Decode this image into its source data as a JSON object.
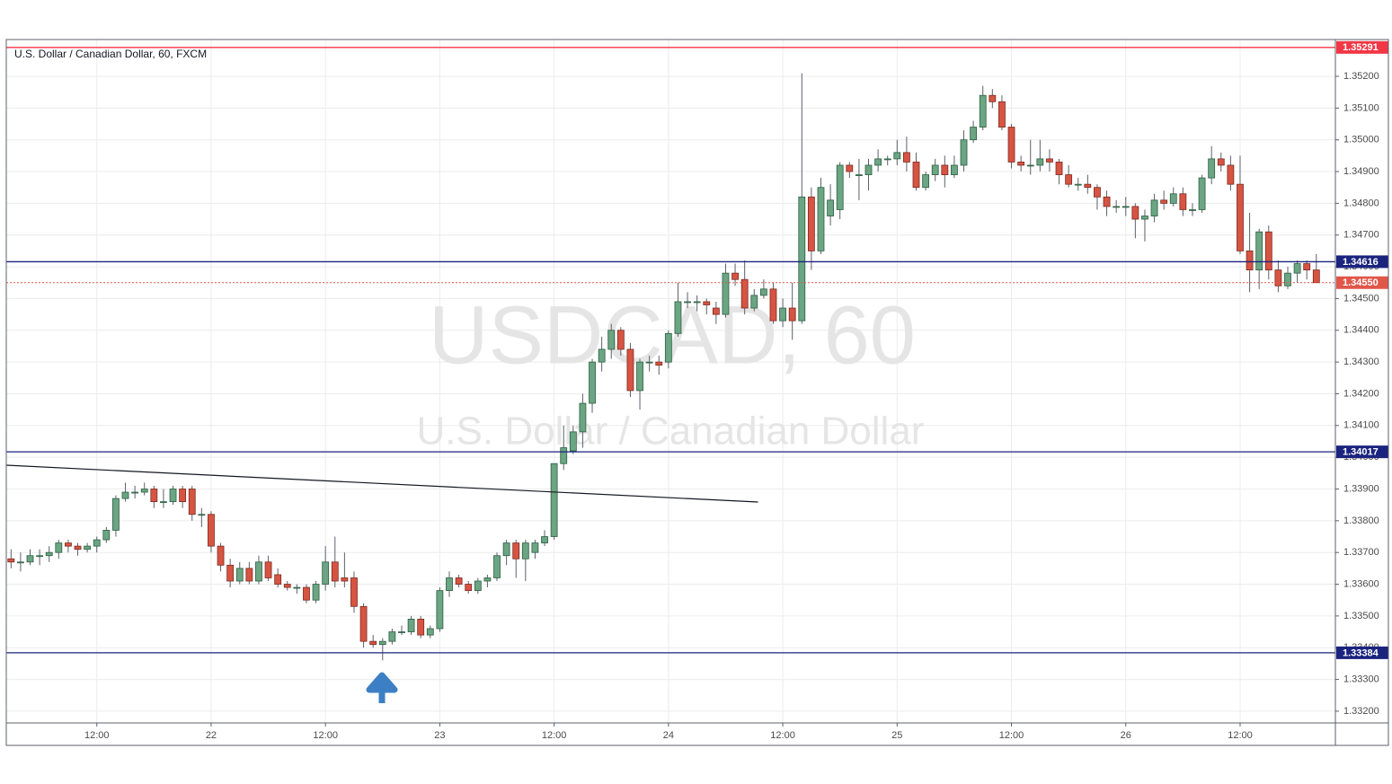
{
  "chart_data": {
    "type": "candlestick",
    "title": "U.S. Dollar / Canadian Dollar, 60, FXCM",
    "watermark": "USDCAD, 60",
    "watermark_subtitle": "U.S. Dollar / Canadian Dollar",
    "up_color": "#6ba583",
    "down_color": "#d75442",
    "grid": true,
    "xlim": [
      -0.5,
      139
    ],
    "xticks": [
      {
        "value": 9,
        "label": "12:00"
      },
      {
        "value": 21,
        "label": "22"
      },
      {
        "value": 33,
        "label": "12:00"
      },
      {
        "value": 45,
        "label": "23"
      },
      {
        "value": 57,
        "label": "12:00"
      },
      {
        "value": 69,
        "label": "24"
      },
      {
        "value": 81,
        "label": "12:00"
      },
      {
        "value": 93,
        "label": "25"
      },
      {
        "value": 105,
        "label": "12:00"
      },
      {
        "value": 117,
        "label": "26"
      },
      {
        "value": 129,
        "label": "12:00"
      }
    ],
    "ylim": [
      1.33163,
      1.35316
    ],
    "yticks": [
      {
        "value": 1.332,
        "label": "1.33200"
      },
      {
        "value": 1.333,
        "label": "1.33300"
      },
      {
        "value": 1.334,
        "label": "1.33400"
      },
      {
        "value": 1.335,
        "label": "1.33500"
      },
      {
        "value": 1.336,
        "label": "1.33600"
      },
      {
        "value": 1.337,
        "label": "1.33700"
      },
      {
        "value": 1.338,
        "label": "1.33800"
      },
      {
        "value": 1.339,
        "label": "1.33900"
      },
      {
        "value": 1.34,
        "label": "1.34000"
      },
      {
        "value": 1.341,
        "label": "1.34100"
      },
      {
        "value": 1.342,
        "label": "1.34200"
      },
      {
        "value": 1.343,
        "label": "1.34300"
      },
      {
        "value": 1.344,
        "label": "1.34400"
      },
      {
        "value": 1.345,
        "label": "1.34500"
      },
      {
        "value": 1.346,
        "label": "1.34600"
      },
      {
        "value": 1.347,
        "label": "1.34700"
      },
      {
        "value": 1.348,
        "label": "1.34800"
      },
      {
        "value": 1.349,
        "label": "1.34900"
      },
      {
        "value": 1.35,
        "label": "1.35000"
      },
      {
        "value": 1.351,
        "label": "1.35100"
      },
      {
        "value": 1.352,
        "label": "1.35200"
      }
    ],
    "levels": [
      {
        "value": 1.35291,
        "color": "#f23645",
        "style": "solid"
      },
      {
        "value": 1.34616,
        "color": "#1a237e",
        "style": "solid"
      },
      {
        "value": 1.3455,
        "label": "1.34550",
        "color": "#e0574a",
        "style": "dotted"
      },
      {
        "value": 1.34017,
        "color": "#1a237e",
        "style": "solid"
      },
      {
        "value": 1.33384,
        "color": "#1a237e",
        "style": "solid"
      }
    ],
    "trendline": [
      [
        -0.5,
        1.33975
      ],
      [
        78.4,
        1.33859
      ]
    ],
    "ohlc": [
      [
        1.3368,
        1.3371,
        1.3365,
        1.3367
      ],
      [
        1.3367,
        1.337,
        1.3364,
        1.3367
      ],
      [
        1.3367,
        1.3371,
        1.3366,
        1.3369
      ],
      [
        1.3369,
        1.3371,
        1.3366,
        1.3369
      ],
      [
        1.3369,
        1.3372,
        1.3367,
        1.337
      ],
      [
        1.337,
        1.3374,
        1.3368,
        1.3373
      ],
      [
        1.3373,
        1.3374,
        1.337,
        1.3372
      ],
      [
        1.3372,
        1.3373,
        1.3369,
        1.3371
      ],
      [
        1.3371,
        1.3373,
        1.337,
        1.3372
      ],
      [
        1.3372,
        1.3375,
        1.337,
        1.3374
      ],
      [
        1.3374,
        1.3378,
        1.3373,
        1.3377
      ],
      [
        1.3377,
        1.3388,
        1.3375,
        1.3387
      ],
      [
        1.3387,
        1.3392,
        1.3386,
        1.3389
      ],
      [
        1.3389,
        1.3391,
        1.3387,
        1.3389
      ],
      [
        1.3389,
        1.3392,
        1.3388,
        1.339
      ],
      [
        1.339,
        1.3391,
        1.3384,
        1.3386
      ],
      [
        1.3386,
        1.339,
        1.3384,
        1.3386
      ],
      [
        1.3386,
        1.3391,
        1.3385,
        1.339
      ],
      [
        1.339,
        1.3391,
        1.3384,
        1.3386
      ],
      [
        1.339,
        1.3391,
        1.338,
        1.3382
      ],
      [
        1.3382,
        1.3384,
        1.3378,
        1.3382
      ],
      [
        1.3382,
        1.3383,
        1.337,
        1.3372
      ],
      [
        1.3372,
        1.3373,
        1.3364,
        1.3366
      ],
      [
        1.3366,
        1.3368,
        1.3359,
        1.3361
      ],
      [
        1.3361,
        1.3367,
        1.336,
        1.3365
      ],
      [
        1.3365,
        1.3367,
        1.336,
        1.3361
      ],
      [
        1.3361,
        1.3369,
        1.336,
        1.3367
      ],
      [
        1.3367,
        1.3369,
        1.3361,
        1.3362
      ],
      [
        1.3363,
        1.3365,
        1.3359,
        1.336
      ],
      [
        1.336,
        1.3361,
        1.3358,
        1.3359
      ],
      [
        1.3359,
        1.336,
        1.3357,
        1.3359
      ],
      [
        1.3359,
        1.336,
        1.3354,
        1.3355
      ],
      [
        1.3355,
        1.3361,
        1.3354,
        1.336
      ],
      [
        1.336,
        1.3372,
        1.3358,
        1.3367
      ],
      [
        1.3367,
        1.3375,
        1.3359,
        1.3361
      ],
      [
        1.3362,
        1.337,
        1.3359,
        1.3361
      ],
      [
        1.3362,
        1.3364,
        1.3351,
        1.3353
      ],
      [
        1.3353,
        1.3354,
        1.334,
        1.3342
      ],
      [
        1.3342,
        1.3344,
        1.334,
        1.3341
      ],
      [
        1.3341,
        1.3343,
        1.3336,
        1.3342
      ],
      [
        1.3342,
        1.3346,
        1.3341,
        1.3345
      ],
      [
        1.3345,
        1.3347,
        1.3344,
        1.3345
      ],
      [
        1.3345,
        1.335,
        1.3344,
        1.3349
      ],
      [
        1.3349,
        1.335,
        1.3343,
        1.3344
      ],
      [
        1.3344,
        1.3347,
        1.3343,
        1.3346
      ],
      [
        1.3346,
        1.3359,
        1.3345,
        1.3358
      ],
      [
        1.3358,
        1.3364,
        1.3356,
        1.3362
      ],
      [
        1.3362,
        1.3363,
        1.3359,
        1.336
      ],
      [
        1.336,
        1.3361,
        1.3357,
        1.3358
      ],
      [
        1.3358,
        1.3362,
        1.3357,
        1.3361
      ],
      [
        1.3361,
        1.3363,
        1.3359,
        1.3362
      ],
      [
        1.3362,
        1.337,
        1.3361,
        1.3369
      ],
      [
        1.3369,
        1.3374,
        1.3366,
        1.3373
      ],
      [
        1.3373,
        1.3374,
        1.3362,
        1.3368
      ],
      [
        1.3368,
        1.3374,
        1.3361,
        1.3373
      ],
      [
        1.337,
        1.3374,
        1.3368,
        1.3373
      ],
      [
        1.3373,
        1.3377,
        1.3372,
        1.3375
      ],
      [
        1.3375,
        1.3398,
        1.3374,
        1.3398
      ],
      [
        1.3398,
        1.341,
        1.3396,
        1.3403
      ],
      [
        1.3402,
        1.341,
        1.3401,
        1.3408
      ],
      [
        1.3408,
        1.342,
        1.3403,
        1.3417
      ],
      [
        1.3417,
        1.3431,
        1.3414,
        1.343
      ],
      [
        1.343,
        1.3438,
        1.3427,
        1.3434
      ],
      [
        1.3434,
        1.3442,
        1.3431,
        1.344
      ],
      [
        1.344,
        1.3441,
        1.3432,
        1.3434
      ],
      [
        1.3434,
        1.3436,
        1.3419,
        1.3421
      ],
      [
        1.3421,
        1.3431,
        1.3415,
        1.343
      ],
      [
        1.343,
        1.3432,
        1.3427,
        1.343
      ],
      [
        1.343,
        1.3432,
        1.3426,
        1.3429
      ],
      [
        1.343,
        1.344,
        1.3428,
        1.3439
      ],
      [
        1.3439,
        1.3455,
        1.3438,
        1.3449
      ],
      [
        1.3449,
        1.3452,
        1.3447,
        1.3449
      ],
      [
        1.3449,
        1.3451,
        1.3446,
        1.3449
      ],
      [
        1.3449,
        1.345,
        1.3445,
        1.3448
      ],
      [
        1.3447,
        1.3449,
        1.3442,
        1.3445
      ],
      [
        1.3445,
        1.3461,
        1.3444,
        1.3458
      ],
      [
        1.3458,
        1.3461,
        1.3454,
        1.3456
      ],
      [
        1.3456,
        1.3462,
        1.3445,
        1.3447
      ],
      [
        1.3447,
        1.3453,
        1.3446,
        1.3451
      ],
      [
        1.3451,
        1.3456,
        1.345,
        1.3453
      ],
      [
        1.3453,
        1.3455,
        1.3442,
        1.3443
      ],
      [
        1.3443,
        1.345,
        1.3441,
        1.3447
      ],
      [
        1.3447,
        1.3455,
        1.3437,
        1.3443
      ],
      [
        1.3443,
        1.3521,
        1.3442,
        1.3482
      ],
      [
        1.3482,
        1.3485,
        1.3459,
        1.3465
      ],
      [
        1.3465,
        1.3488,
        1.3464,
        1.3485
      ],
      [
        1.3476,
        1.3486,
        1.3473,
        1.3481
      ],
      [
        1.3478,
        1.3493,
        1.3475,
        1.3492
      ],
      [
        1.3492,
        1.3493,
        1.3488,
        1.349
      ],
      [
        1.3489,
        1.3494,
        1.3481,
        1.3489
      ],
      [
        1.3489,
        1.3494,
        1.3484,
        1.3492
      ],
      [
        1.3492,
        1.3497,
        1.349,
        1.3494
      ],
      [
        1.3494,
        1.3495,
        1.3492,
        1.3494
      ],
      [
        1.3494,
        1.35,
        1.3492,
        1.3496
      ],
      [
        1.3496,
        1.3501,
        1.349,
        1.3493
      ],
      [
        1.3493,
        1.3496,
        1.3484,
        1.3485
      ],
      [
        1.3485,
        1.349,
        1.3484,
        1.3489
      ],
      [
        1.3489,
        1.3494,
        1.3487,
        1.3492
      ],
      [
        1.3492,
        1.3495,
        1.3485,
        1.3489
      ],
      [
        1.3489,
        1.3495,
        1.3488,
        1.3492
      ],
      [
        1.3492,
        1.3503,
        1.349,
        1.35
      ],
      [
        1.35,
        1.3506,
        1.3499,
        1.3504
      ],
      [
        1.3504,
        1.3517,
        1.3503,
        1.3514
      ],
      [
        1.3514,
        1.3516,
        1.351,
        1.3512
      ],
      [
        1.3512,
        1.3514,
        1.3503,
        1.3504
      ],
      [
        1.3504,
        1.3505,
        1.3491,
        1.3493
      ],
      [
        1.3493,
        1.3495,
        1.349,
        1.3492
      ],
      [
        1.3492,
        1.35,
        1.3489,
        1.3492
      ],
      [
        1.3492,
        1.35,
        1.349,
        1.3494
      ],
      [
        1.3494,
        1.3497,
        1.349,
        1.3493
      ],
      [
        1.3493,
        1.3494,
        1.3486,
        1.3489
      ],
      [
        1.3489,
        1.3492,
        1.3485,
        1.3486
      ],
      [
        1.3486,
        1.3488,
        1.3484,
        1.3486
      ],
      [
        1.3486,
        1.3489,
        1.3483,
        1.3485
      ],
      [
        1.3485,
        1.3486,
        1.3478,
        1.3482
      ],
      [
        1.3482,
        1.3484,
        1.3476,
        1.3479
      ],
      [
        1.3479,
        1.3481,
        1.3477,
        1.3479
      ],
      [
        1.3479,
        1.3482,
        1.3476,
        1.3479
      ],
      [
        1.3479,
        1.348,
        1.3469,
        1.3475
      ],
      [
        1.3475,
        1.3478,
        1.3468,
        1.3476
      ],
      [
        1.3476,
        1.3483,
        1.3474,
        1.3481
      ],
      [
        1.3481,
        1.3484,
        1.3478,
        1.348
      ],
      [
        1.348,
        1.3485,
        1.3479,
        1.3483
      ],
      [
        1.3483,
        1.3485,
        1.3476,
        1.3478
      ],
      [
        1.3478,
        1.348,
        1.3476,
        1.3478
      ],
      [
        1.3478,
        1.3489,
        1.3477,
        1.3488
      ],
      [
        1.3488,
        1.3498,
        1.3486,
        1.3494
      ],
      [
        1.3494,
        1.3496,
        1.349,
        1.3492
      ],
      [
        1.3492,
        1.3495,
        1.3484,
        1.3486
      ],
      [
        1.3486,
        1.3495,
        1.3464,
        1.3465
      ],
      [
        1.3465,
        1.3477,
        1.3452,
        1.3459
      ],
      [
        1.3459,
        1.3472,
        1.3453,
        1.3471
      ],
      [
        1.3471,
        1.3473,
        1.3456,
        1.3459
      ],
      [
        1.3459,
        1.3462,
        1.3452,
        1.3454
      ],
      [
        1.3454,
        1.346,
        1.3453,
        1.3458
      ],
      [
        1.3458,
        1.3462,
        1.3455,
        1.3461
      ],
      [
        1.3461,
        1.3462,
        1.3456,
        1.3459
      ],
      [
        1.3459,
        1.3464,
        1.3455,
        1.3455
      ]
    ]
  }
}
